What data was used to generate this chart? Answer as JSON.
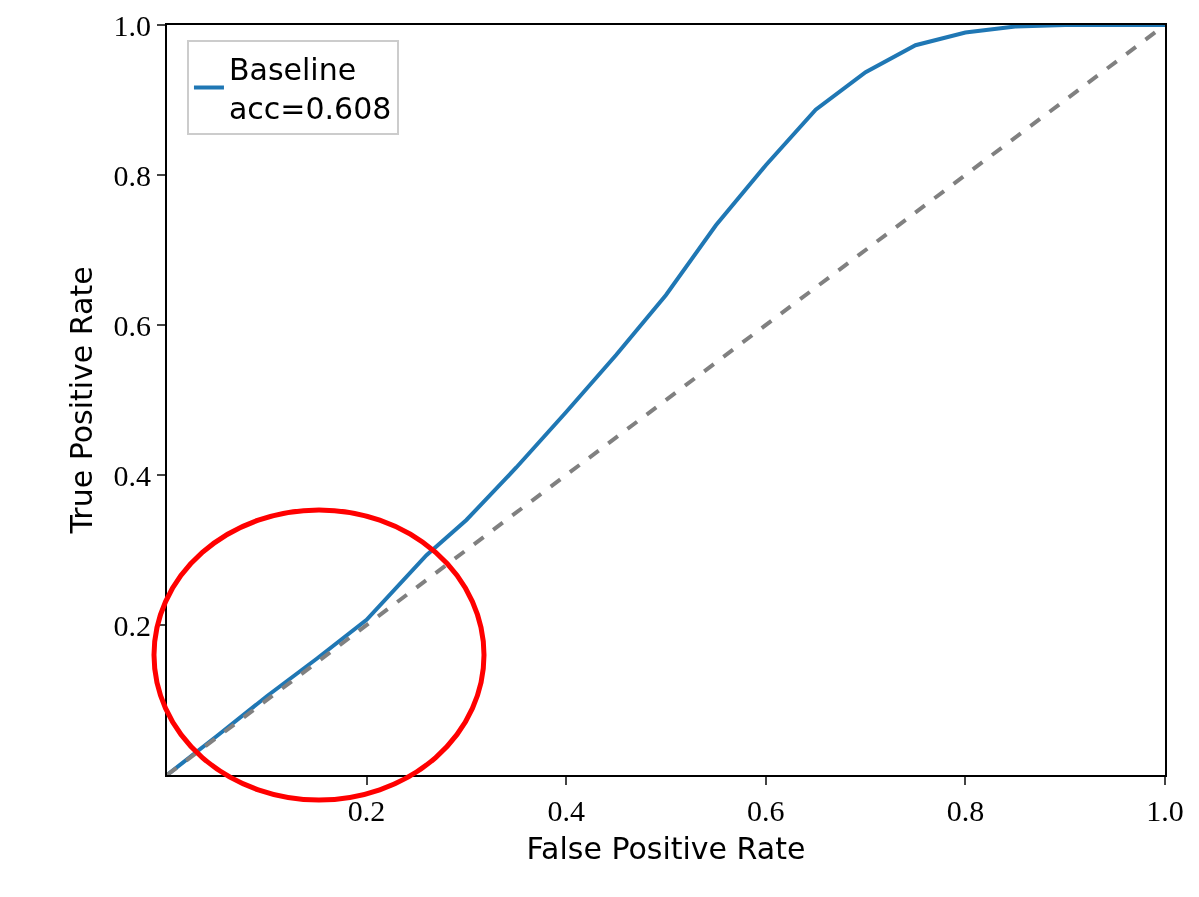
{
  "chart_data": {
    "type": "line",
    "xlabel": "False Positive Rate",
    "ylabel": "True Positive Rate",
    "xlim": [
      0,
      1
    ],
    "ylim": [
      0,
      1
    ],
    "xticks": [
      0.2,
      0.4,
      0.6,
      0.8,
      {
        "value": 1,
        "label": "1.0"
      }
    ],
    "yticks": [
      0.2,
      0.4,
      0.6,
      0.8,
      {
        "value": 1,
        "label": "1.0"
      }
    ],
    "grid": false,
    "legend": "top left",
    "marker": "none",
    "series": [
      {
        "name": "Baseline\nacc=0.608",
        "color": "#1f77b4",
        "line_style": "solid",
        "x": [
          0,
          0.05,
          0.1,
          0.15,
          0.2,
          0.26,
          0.3,
          0.35,
          0.4,
          0.45,
          0.5,
          0.55,
          0.6,
          0.65,
          0.7,
          0.75,
          0.8,
          0.85,
          0.9,
          1
        ],
        "values": [
          0,
          0.052,
          0.105,
          0.155,
          0.207,
          0.293,
          0.34,
          0.41,
          0.484,
          0.56,
          0.64,
          0.733,
          0.813,
          0.887,
          0.937,
          0.973,
          0.99,
          0.998,
          1,
          1
        ]
      },
      {
        "color": "#808080",
        "line_style": "dashed",
        "x": [
          0,
          1
        ],
        "values": [
          0,
          1
        ]
      }
    ]
  }
}
